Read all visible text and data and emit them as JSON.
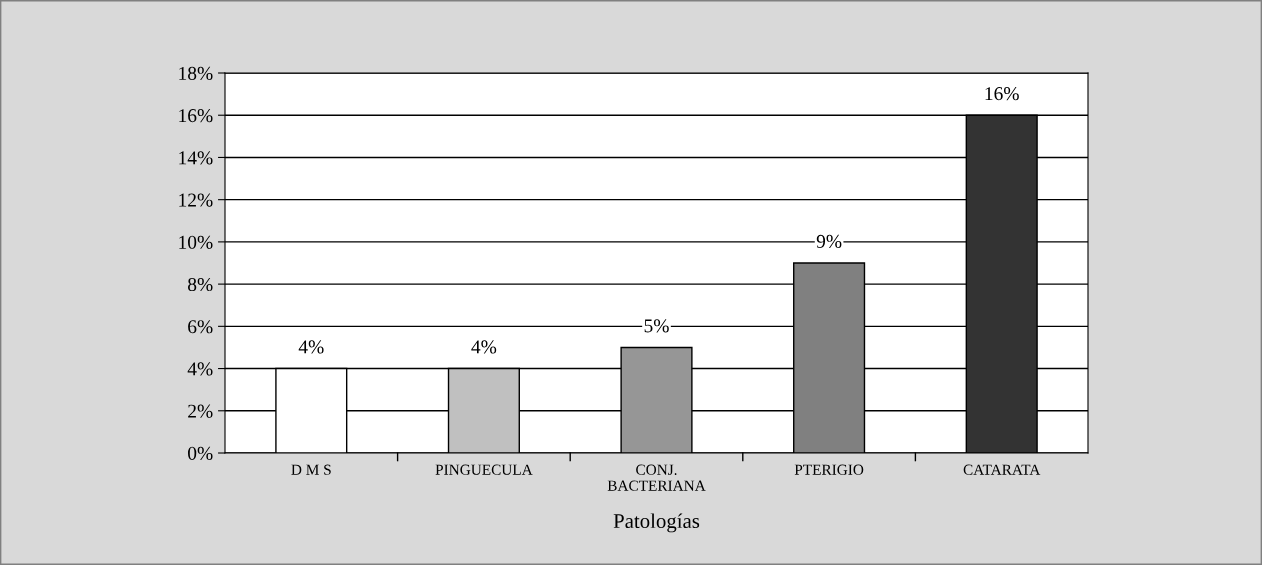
{
  "chart_data": {
    "type": "bar",
    "xlabel": "Patologías",
    "categories": [
      "D M S",
      "PINGUECULA",
      "CONJ.\nBACTERIANA",
      "PTERIGIO",
      "CATARATA"
    ],
    "values": [
      4,
      4,
      5,
      9,
      16
    ],
    "colors": [
      "#ffffff",
      "#c0c0c0",
      "#969696",
      "#808080",
      "#333333"
    ],
    "value_labels": [
      "4%",
      "4%",
      "5%",
      "9%",
      "16%"
    ],
    "ylim": [
      0,
      18
    ],
    "yticks": [
      {
        "value": 0,
        "label": "0%"
      },
      {
        "value": 2,
        "label": "2%"
      },
      {
        "value": 4,
        "label": "4%"
      },
      {
        "value": 6,
        "label": "6%"
      },
      {
        "value": 8,
        "label": "8%"
      },
      {
        "value": 10,
        "label": "10%"
      },
      {
        "value": 12,
        "label": "12%"
      },
      {
        "value": 14,
        "label": "14%"
      },
      {
        "value": 16,
        "label": "16%"
      },
      {
        "value": 18,
        "label": "18%"
      }
    ],
    "grid": "y",
    "legend": false
  }
}
